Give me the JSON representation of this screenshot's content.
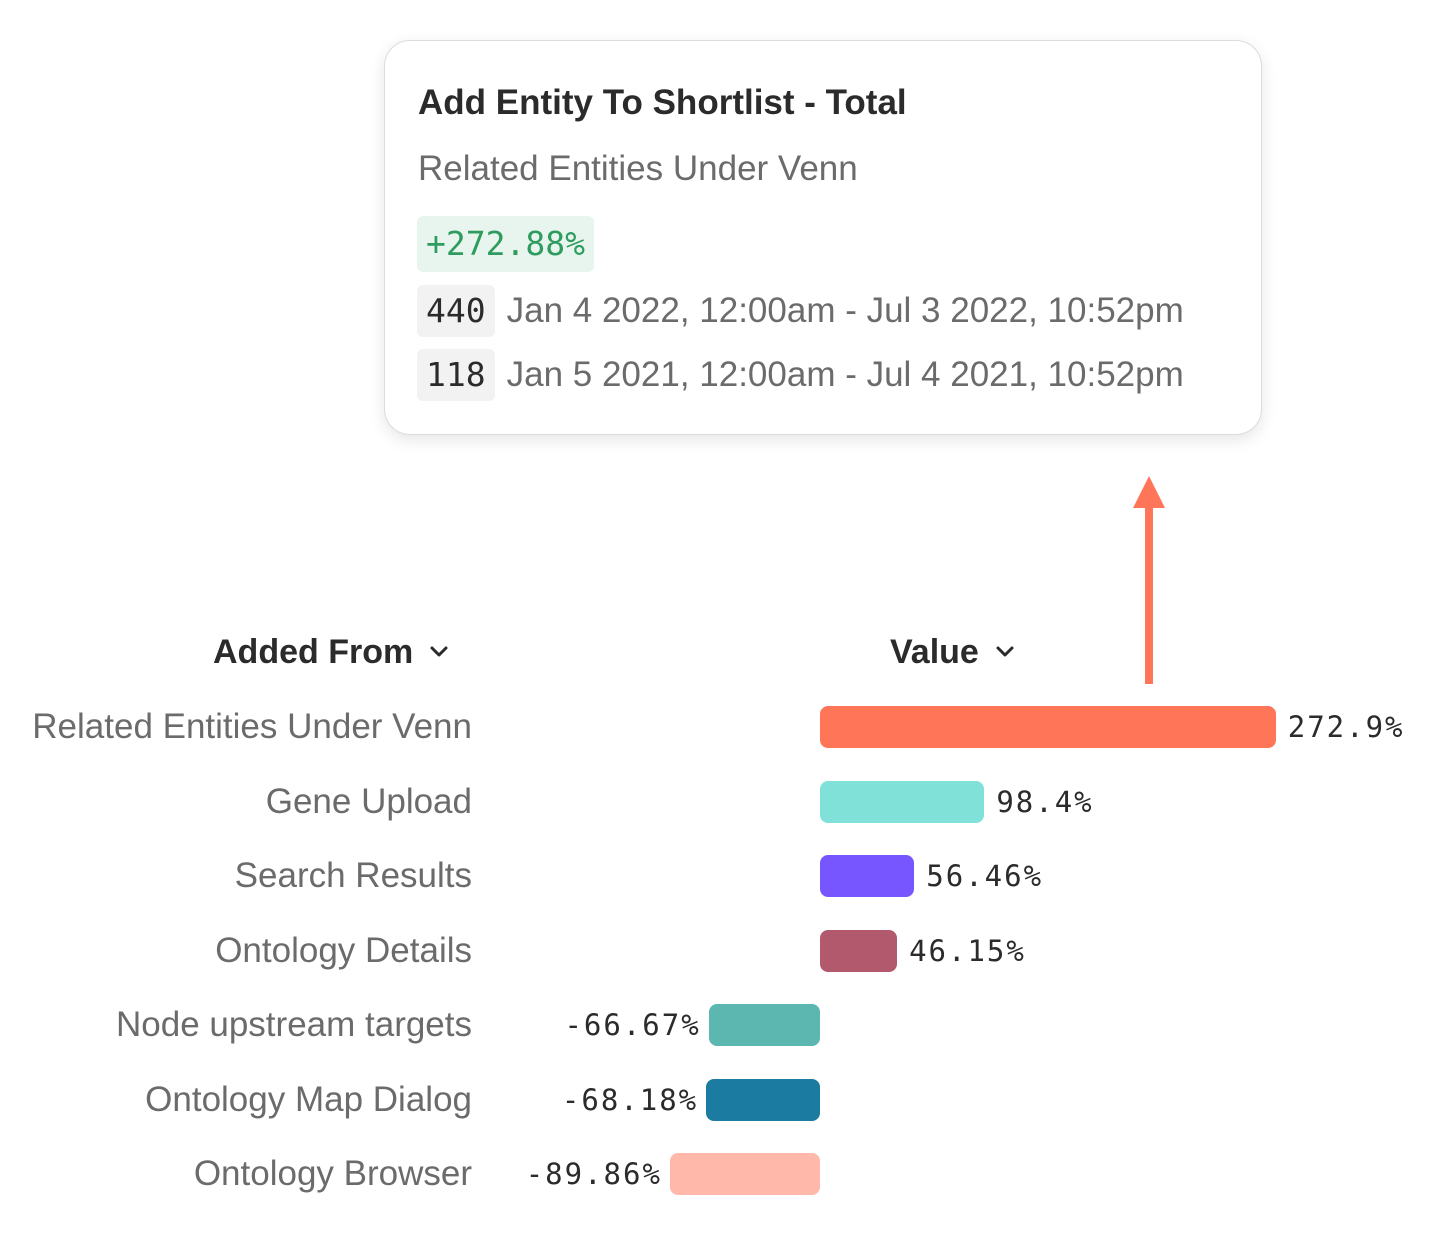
{
  "tooltip": {
    "title": "Add Entity To Shortlist - Total",
    "subtitle": "Related Entities Under Venn",
    "delta": "+272.88%",
    "current": {
      "count": "440",
      "range": "Jan 4 2022, 12:00am - Jul 3 2022, 10:52pm"
    },
    "previous": {
      "count": "118",
      "range": "Jan 5 2021, 12:00am - Jul 4 2021, 10:52pm"
    },
    "delta_color": "#2e9c5e"
  },
  "arrow_color": "#ff7557",
  "table": {
    "header_added_from": "Added From",
    "header_value": "Value",
    "sort_icon": "chevron-down-icon"
  },
  "chart_data": {
    "type": "bar",
    "orientation": "horizontal",
    "categories": [
      "Related Entities Under Venn",
      "Gene Upload",
      "Search Results",
      "Ontology Details",
      "Node upstream targets",
      "Ontology Map Dialog",
      "Ontology Browser"
    ],
    "values": [
      272.9,
      98.4,
      56.46,
      46.15,
      -66.67,
      -68.18,
      -89.86
    ],
    "value_labels": [
      "272.9%",
      "98.4%",
      "56.46%",
      "46.15%",
      "-66.67%",
      "-68.18%",
      "-89.86%"
    ],
    "colors": [
      "#ff7557",
      "#80e1d9",
      "#7856ff",
      "#b2596e",
      "#5bb7af",
      "#1c7ba0",
      "#ffb8aa"
    ],
    "xlabel": "",
    "ylabel": ""
  }
}
